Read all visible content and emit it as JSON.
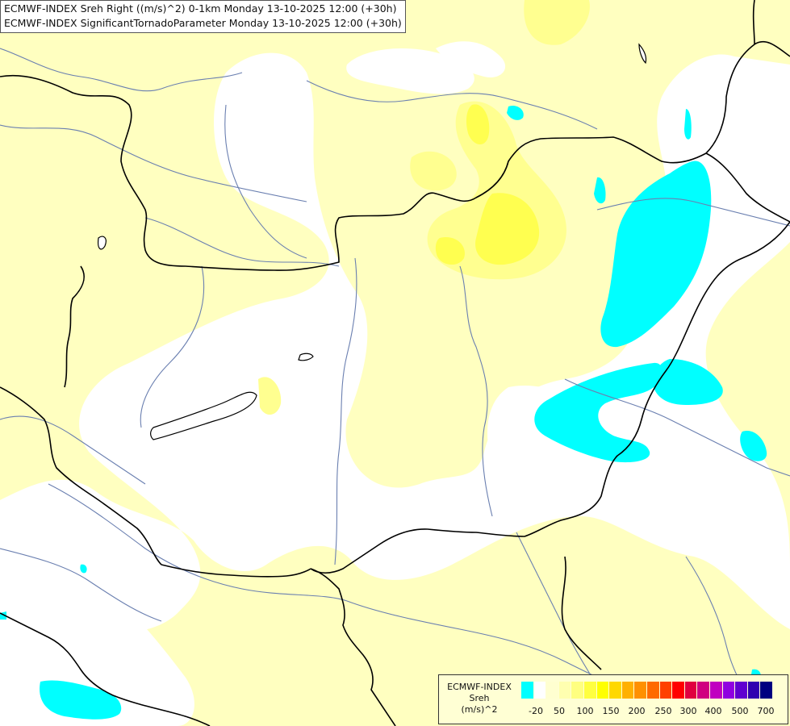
{
  "title": {
    "line1": "ECMWF-INDEX Sreh Right ((m/s)^2) 0-1km Monday 13-10-2025 12:00 (+30h)",
    "line2": "ECMWF-INDEX SignificantTornadoParameter Monday 13-10-2025 12:00 (+30h)"
  },
  "legend": {
    "name_line1": "ECMWF-INDEX",
    "name_line2": "Sreh",
    "name_line3": "(m/s)^2",
    "swatches": [
      "#00ffff",
      "#ffffff",
      "#ffffd0",
      "#ffffb0",
      "#ffff80",
      "#ffff40",
      "#ffff00",
      "#ffd800",
      "#ffb000",
      "#ff9000",
      "#ff6a00",
      "#ff4000",
      "#ff0000",
      "#e00040",
      "#d00080",
      "#c000c0",
      "#9000e0",
      "#6000d0",
      "#3000b0",
      "#000080"
    ],
    "ticks": [
      "-20",
      "50",
      "100",
      "150",
      "200",
      "250",
      "300",
      "400",
      "500",
      "700"
    ]
  },
  "colors": {
    "pale_yellow": "#ffffc0",
    "light_yellow": "#ffff90",
    "mid_yellow": "#ffff50",
    "cyan": "#00ffff",
    "borders": "#000000",
    "rivers": "#6a7fb0"
  }
}
